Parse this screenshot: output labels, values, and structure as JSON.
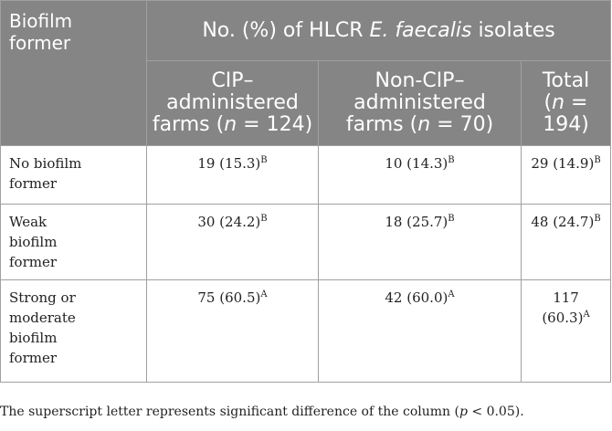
{
  "header": {
    "biofilm_former": "Biofilm former",
    "span_prefix": "No. (%) of HLCR ",
    "span_species": "E. faecalis",
    "span_suffix": " isolates",
    "columns": [
      {
        "line1": "CIP–",
        "line2": "administered",
        "line3_prefix": "farms (",
        "n_symbol": "n",
        "line3_suffix": " = 124)"
      },
      {
        "line1": "Non-CIP–",
        "line2": "administered",
        "line3_prefix": "farms (",
        "n_symbol": "n",
        "line3_suffix": " = 70)"
      },
      {
        "line1": "Total",
        "line2_prefix": "(",
        "n_symbol": "n",
        "line2_suffix": " =",
        "line3": "194)"
      }
    ]
  },
  "rows": [
    {
      "label": "No biofilm former",
      "cip": {
        "value": "19 (15.3)",
        "sup": "B"
      },
      "non_cip": {
        "value": "10 (14.3)",
        "sup": "B"
      },
      "total": {
        "value": "29 (14.9)",
        "sup": "B"
      }
    },
    {
      "label": "Weak biofilm former",
      "cip": {
        "value": "30 (24.2)",
        "sup": "B"
      },
      "non_cip": {
        "value": "18 (25.7)",
        "sup": "B"
      },
      "total": {
        "value": "48 (24.7)",
        "sup": "B"
      }
    },
    {
      "label": "Strong or moderate biofilm former",
      "cip": {
        "value": "75 (60.5)",
        "sup": "A"
      },
      "non_cip": {
        "value": "42 (60.0)",
        "sup": "A"
      },
      "total": {
        "value_line1": "117",
        "value_line2": "(60.3)",
        "sup": "A"
      }
    }
  ],
  "footnote": {
    "prefix": "The superscript letter represents significant difference of the column (",
    "p_symbol": "p",
    "suffix": " < 0.05)."
  }
}
